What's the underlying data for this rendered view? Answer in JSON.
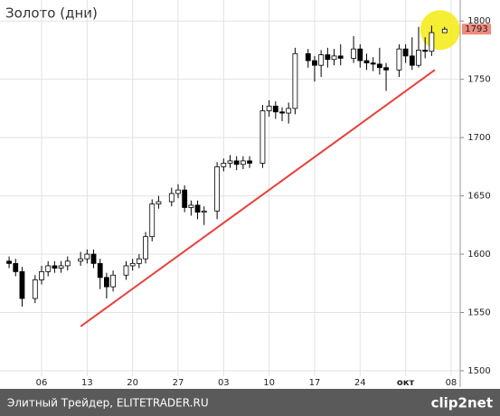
{
  "chart_data": {
    "type": "candlestick",
    "title": "Золото (дни)",
    "x": [
      1,
      2,
      3,
      5,
      6,
      7,
      8,
      9,
      10,
      12,
      13,
      14,
      15,
      16,
      17,
      19,
      20,
      21,
      22,
      23,
      24,
      26,
      27,
      28,
      29,
      30,
      31,
      33,
      34,
      35,
      36,
      37,
      38,
      40,
      41,
      42,
      43,
      44,
      45,
      47,
      48,
      49,
      50,
      51,
      52,
      54,
      55,
      56,
      57,
      58,
      59,
      61,
      62,
      63,
      64,
      65,
      66,
      68
    ],
    "open": [
      1594,
      1592,
      1585,
      1562,
      1578,
      1585,
      1590,
      1588,
      1590,
      1594,
      1596,
      1600,
      1592,
      1580,
      1572,
      1582,
      1590,
      1592,
      1596,
      1615,
      1643,
      1645,
      1652,
      1655,
      1640,
      1642,
      1636,
      1637,
      1675,
      1678,
      1680,
      1677,
      1680,
      1678,
      1723,
      1727,
      1722,
      1721,
      1725,
      1772,
      1766,
      1762,
      1771,
      1767,
      1770,
      1768,
      1776,
      1766,
      1764,
      1763,
      1760,
      1758,
      1776,
      1770,
      1762,
      1775,
      1774,
      1790
    ],
    "high": [
      1598,
      1596,
      1589,
      1582,
      1590,
      1594,
      1594,
      1594,
      1598,
      1602,
      1604,
      1604,
      1596,
      1584,
      1586,
      1594,
      1596,
      1600,
      1619,
      1647,
      1650,
      1657,
      1660,
      1659,
      1646,
      1646,
      1641,
      1679,
      1682,
      1685,
      1684,
      1684,
      1684,
      1728,
      1732,
      1731,
      1726,
      1730,
      1777,
      1776,
      1770,
      1775,
      1777,
      1776,
      1780,
      1787,
      1780,
      1772,
      1769,
      1777,
      1764,
      1780,
      1780,
      1786,
      1795,
      1786,
      1796,
      1795
    ],
    "low": [
      1588,
      1581,
      1555,
      1558,
      1574,
      1581,
      1584,
      1584,
      1586,
      1590,
      1592,
      1588,
      1570,
      1562,
      1568,
      1578,
      1586,
      1588,
      1592,
      1611,
      1639,
      1641,
      1648,
      1636,
      1633,
      1630,
      1625,
      1630,
      1671,
      1674,
      1672,
      1673,
      1674,
      1674,
      1718,
      1716,
      1714,
      1712,
      1720,
      1760,
      1748,
      1752,
      1760,
      1762,
      1762,
      1764,
      1760,
      1758,
      1757,
      1754,
      1740,
      1752,
      1764,
      1758,
      1760,
      1768,
      1770,
      1790
    ],
    "close": [
      1592,
      1585,
      1562,
      1578,
      1585,
      1590,
      1588,
      1590,
      1594,
      1596,
      1600,
      1592,
      1580,
      1572,
      1582,
      1590,
      1592,
      1596,
      1615,
      1643,
      1645,
      1652,
      1655,
      1640,
      1642,
      1636,
      1637,
      1675,
      1678,
      1680,
      1677,
      1680,
      1678,
      1723,
      1727,
      1722,
      1721,
      1725,
      1772,
      1766,
      1762,
      1771,
      1767,
      1770,
      1768,
      1776,
      1766,
      1764,
      1763,
      1760,
      1758,
      1776,
      1770,
      1762,
      1775,
      1774,
      1790,
      1793
    ],
    "up_color": "#ffffff",
    "down_color": "#000000",
    "xlim": [
      -0.4,
      70.4
    ],
    "xticks": [
      {
        "value": 6,
        "label": "06"
      },
      13,
      20,
      27,
      {
        "value": 34,
        "label": "03"
      },
      {
        "value": 41,
        "label": "10"
      },
      {
        "value": 48,
        "label": "17"
      },
      {
        "value": 55,
        "label": "24"
      },
      {
        "value": 62,
        "label": "окт"
      },
      {
        "value": 69,
        "label": "08"
      }
    ],
    "ylim": [
      1486,
      1818
    ],
    "yticks": [
      1500,
      1550,
      1600,
      1650,
      1700,
      1750,
      1800
    ],
    "grid": true,
    "trendline": {
      "x": [
        12,
        66.5
      ],
      "values": [
        1538,
        1758
      ],
      "color": "#e8403a"
    },
    "last_price": 1793
  },
  "footer": {
    "source": "Элитный Трейдер, ELITETRADER.RU",
    "logo": "clip2net"
  }
}
